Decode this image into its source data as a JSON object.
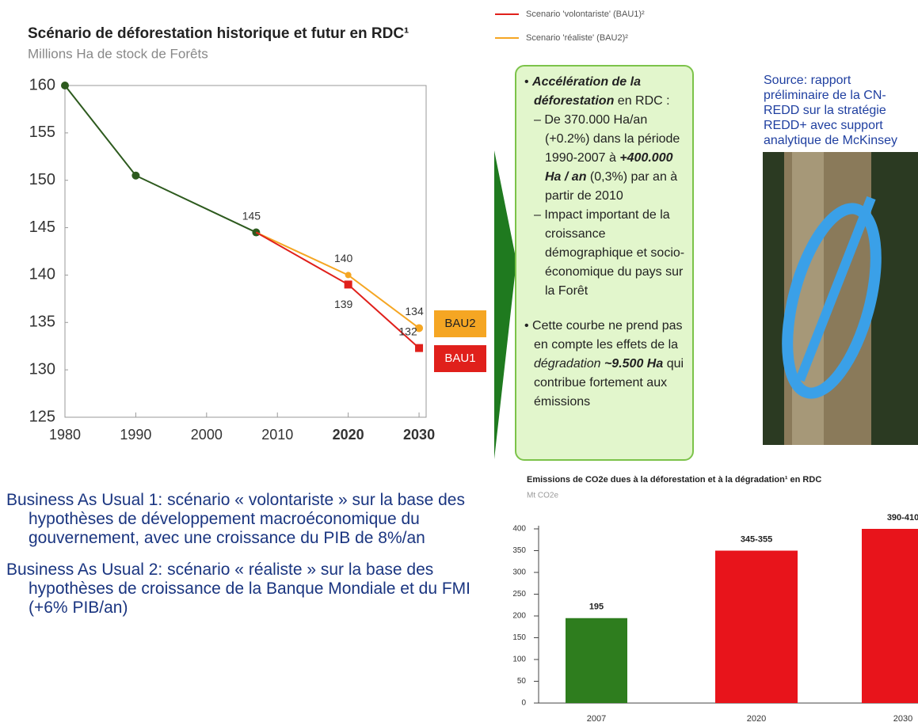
{
  "chart_data": [
    {
      "type": "line",
      "title": "Scénario de déforestation historique et futur en RDC¹",
      "subtitle": "Millions Ha de stock de Forêts",
      "xlim": [
        1980,
        2031
      ],
      "xticks": [
        1980,
        1990,
        2000,
        2010,
        2020,
        2030
      ],
      "ylim": [
        125,
        160
      ],
      "yticks": [
        125,
        130,
        135,
        140,
        145,
        150,
        155,
        160
      ],
      "series": [
        {
          "name": null,
          "color": "#2d5a1e",
          "x": [
            1980,
            1990,
            2007
          ],
          "values": [
            160,
            150.5,
            144.5
          ],
          "value_labels": [
            null,
            null,
            "145"
          ]
        },
        {
          "name": "Scenario 'réaliste' (BAU2)²",
          "tag": "BAU2",
          "color": "#f5a623",
          "x": [
            2007,
            2020,
            2030
          ],
          "values": [
            144.5,
            140,
            134.4
          ],
          "value_labels": [
            null,
            "140",
            "134"
          ]
        },
        {
          "name": "Scenario 'volontariste' (BAU1)²",
          "tag": "BAU1",
          "color": "#e0201b",
          "x": [
            2007,
            2020,
            2030
          ],
          "values": [
            144.5,
            139,
            132.3
          ],
          "value_labels": [
            null,
            "139",
            "132"
          ]
        }
      ]
    },
    {
      "type": "bar",
      "title": "Emissions de CO2e dues à la déforestation et à la dégradation¹ en RDC",
      "subtitle": "Mt CO2e",
      "categories": [
        "2007",
        "2020",
        "2030"
      ],
      "values": [
        195,
        350,
        400
      ],
      "value_labels": [
        "195",
        "345-355",
        "390-410"
      ],
      "colors": [
        "#2e7d1e",
        "#e8141b",
        "#e8141b"
      ],
      "ylim": [
        0,
        400
      ],
      "yticks": [
        0,
        50,
        100,
        150,
        200,
        250,
        300,
        350,
        400
      ]
    }
  ],
  "text_box": {
    "bullets": [
      {
        "runs": [
          {
            "text": "Accélération de la déforestation",
            "style": "bi"
          },
          {
            "text": " en RDC :"
          }
        ],
        "subs": [
          {
            "runs": [
              {
                "text": "De 370.000 Ha/an (+0.2%) dans la période 1990-2007 à "
              },
              {
                "text": "+400.000 Ha / an",
                "style": "bi"
              },
              {
                "text": " (0,3%) par an à partir de 2010"
              }
            ]
          },
          {
            "runs": [
              {
                "text": "Impact important de la croissance démographique et socio-économique du pays sur la Forêt"
              }
            ]
          }
        ]
      },
      {
        "runs": [
          {
            "text": "Cette courbe ne prend pas en compte les effets de la "
          },
          {
            "text": "dégradation",
            "style": "i"
          },
          {
            "text": " ~9.500 Ha",
            "style": "bi"
          },
          {
            "text": " qui contribue fortement aux émissions"
          }
        ]
      }
    ]
  },
  "source": "Source: rapport préliminaire de la CN-REDD sur la stratégie REDD+ avec support analytique de McKinsey",
  "notes": [
    "Business As Usual 1: scénario « volontariste » sur la base des hypothèses de développement macroéconomique du gouvernement, avec une croissance du PIB de 8%/an",
    "Business As Usual 2: scénario « réaliste » sur la base des hypothèses de croissance de la Banque Mondiale et du FMI (+6% PIB/an)"
  ]
}
